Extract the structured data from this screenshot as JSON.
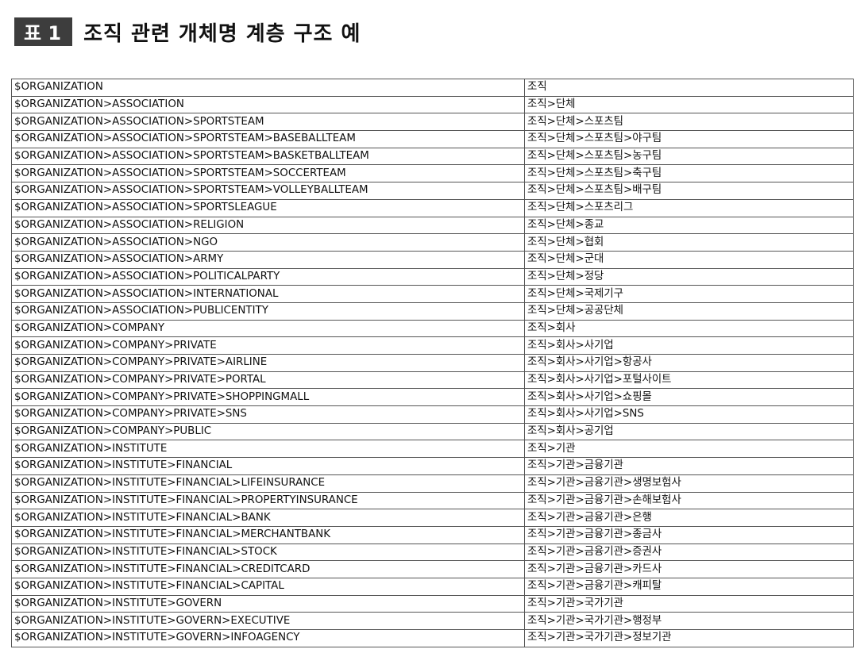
{
  "header": {
    "badge": "표 1",
    "title": "조직 관련 개체명 계층 구조 예"
  },
  "table": {
    "rows": [
      [
        "$ORGANIZATION",
        "조직"
      ],
      [
        "$ORGANIZATION>ASSOCIATION",
        "조직>단체"
      ],
      [
        "$ORGANIZATION>ASSOCIATION>SPORTSTEAM",
        "조직>단체>스포츠팀"
      ],
      [
        "$ORGANIZATION>ASSOCIATION>SPORTSTEAM>BASEBALLTEAM",
        "조직>단체>스포츠팀>야구팀"
      ],
      [
        "$ORGANIZATION>ASSOCIATION>SPORTSTEAM>BASKETBALLTEAM",
        "조직>단체>스포츠팀>농구팀"
      ],
      [
        "$ORGANIZATION>ASSOCIATION>SPORTSTEAM>SOCCERTEAM",
        "조직>단체>스포츠팀>축구팀"
      ],
      [
        "$ORGANIZATION>ASSOCIATION>SPORTSTEAM>VOLLEYBALLTEAM",
        "조직>단체>스포츠팀>배구팀"
      ],
      [
        "$ORGANIZATION>ASSOCIATION>SPORTSLEAGUE",
        "조직>단체>스포츠리그"
      ],
      [
        "$ORGANIZATION>ASSOCIATION>RELIGION",
        "조직>단체>종교"
      ],
      [
        "$ORGANIZATION>ASSOCIATION>NGO",
        "조직>단체>협회"
      ],
      [
        "$ORGANIZATION>ASSOCIATION>ARMY",
        "조직>단체>군대"
      ],
      [
        "$ORGANIZATION>ASSOCIATION>POLITICALPARTY",
        "조직>단체>정당"
      ],
      [
        "$ORGANIZATION>ASSOCIATION>INTERNATIONAL",
        "조직>단체>국제기구"
      ],
      [
        "$ORGANIZATION>ASSOCIATION>PUBLICENTITY",
        "조직>단체>공공단체"
      ],
      [
        "$ORGANIZATION>COMPANY",
        "조직>회사"
      ],
      [
        "$ORGANIZATION>COMPANY>PRIVATE",
        "조직>회사>사기업"
      ],
      [
        "$ORGANIZATION>COMPANY>PRIVATE>AIRLINE",
        "조직>회사>사기업>항공사"
      ],
      [
        "$ORGANIZATION>COMPANY>PRIVATE>PORTAL",
        "조직>회사>사기업>포털사이트"
      ],
      [
        "$ORGANIZATION>COMPANY>PRIVATE>SHOPPINGMALL",
        "조직>회사>사기업>쇼핑몰"
      ],
      [
        "$ORGANIZATION>COMPANY>PRIVATE>SNS",
        "조직>회사>사기업>SNS"
      ],
      [
        "$ORGANIZATION>COMPANY>PUBLIC",
        "조직>회사>공기업"
      ],
      [
        "$ORGANIZATION>INSTITUTE",
        "조직>기관"
      ],
      [
        "$ORGANIZATION>INSTITUTE>FINANCIAL",
        "조직>기관>금융기관"
      ],
      [
        "$ORGANIZATION>INSTITUTE>FINANCIAL>LIFEINSURANCE",
        "조직>기관>금융기관>생명보험사"
      ],
      [
        "$ORGANIZATION>INSTITUTE>FINANCIAL>PROPERTYINSURANCE",
        "조직>기관>금융기관>손해보험사"
      ],
      [
        "$ORGANIZATION>INSTITUTE>FINANCIAL>BANK",
        "조직>기관>금융기관>은행"
      ],
      [
        "$ORGANIZATION>INSTITUTE>FINANCIAL>MERCHANTBANK",
        "조직>기관>금융기관>종금사"
      ],
      [
        "$ORGANIZATION>INSTITUTE>FINANCIAL>STOCK",
        "조직>기관>금융기관>증권사"
      ],
      [
        "$ORGANIZATION>INSTITUTE>FINANCIAL>CREDITCARD",
        "조직>기관>금융기관>카드사"
      ],
      [
        "$ORGANIZATION>INSTITUTE>FINANCIAL>CAPITAL",
        "조직>기관>금융기관>캐피탈"
      ],
      [
        "$ORGANIZATION>INSTITUTE>GOVERN",
        "조직>기관>국가기관"
      ],
      [
        "$ORGANIZATION>INSTITUTE>GOVERN>EXECUTIVE",
        "조직>기관>국가기관>행정부"
      ],
      [
        "$ORGANIZATION>INSTITUTE>GOVERN>INFOAGENCY",
        "조직>기관>국가기관>정보기관"
      ]
    ]
  }
}
